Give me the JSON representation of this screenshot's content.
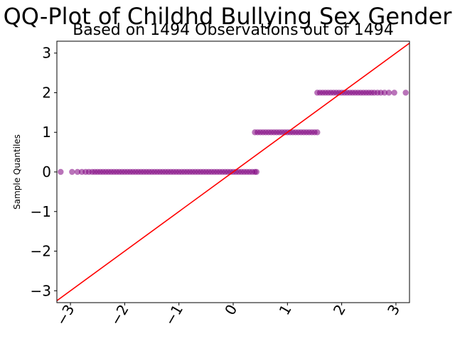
{
  "chart_data": {
    "type": "scatter",
    "title": "QQ-Plot of Childhd Bullying Sex Gender",
    "subtitle": "Based on 1494 Observations out of 1494",
    "xlabel": "",
    "ylabel": "Sample Quantiles",
    "xlim": [
      -3.25,
      3.25
    ],
    "ylim": [
      -3.3,
      3.3
    ],
    "x_ticks": [
      -3,
      -2,
      -1,
      0,
      1,
      2,
      3
    ],
    "x_tick_labels": [
      "−3",
      "−2",
      "−1",
      "0",
      "1",
      "2",
      "3"
    ],
    "y_ticks": [
      -3,
      -2,
      -1,
      0,
      1,
      2,
      3
    ],
    "y_tick_labels": [
      "−3",
      "−2",
      "−1",
      "0",
      "1",
      "2",
      "3"
    ],
    "grid": false,
    "colors": {
      "points": "#800080",
      "reference_line": "#ff0000"
    },
    "reference_line": {
      "x": [
        -3.3,
        3.3
      ],
      "y": [
        -3.3,
        3.3
      ]
    },
    "series": [
      {
        "values_level": 0,
        "x": [
          -3.18,
          -2.97,
          -2.87,
          -2.79,
          -2.72,
          -2.66,
          -2.6,
          -2.55,
          -2.5,
          -2.45,
          -2.4,
          -2.35,
          -2.3,
          -2.25,
          -2.2,
          -2.15,
          -2.1,
          -2.05,
          -2.0,
          -1.95,
          -1.9,
          -1.85,
          -1.8,
          -1.75,
          -1.7,
          -1.65,
          -1.6,
          -1.55,
          -1.5,
          -1.45,
          -1.4,
          -1.35,
          -1.3,
          -1.25,
          -1.2,
          -1.15,
          -1.1,
          -1.05,
          -1.0,
          -0.95,
          -0.9,
          -0.85,
          -0.8,
          -0.75,
          -0.7,
          -0.65,
          -0.6,
          -0.55,
          -0.5,
          -0.45,
          -0.4,
          -0.35,
          -0.3,
          -0.25,
          -0.2,
          -0.15,
          -0.1,
          -0.05,
          0.0,
          0.05,
          0.1,
          0.15,
          0.2,
          0.25,
          0.3,
          0.35,
          0.4,
          0.43
        ]
      },
      {
        "values_level": 1,
        "x": [
          0.4,
          0.45,
          0.5,
          0.55,
          0.6,
          0.65,
          0.7,
          0.75,
          0.8,
          0.85,
          0.9,
          0.95,
          1.0,
          1.05,
          1.1,
          1.15,
          1.2,
          1.25,
          1.3,
          1.35,
          1.4,
          1.45,
          1.5,
          1.55
        ]
      },
      {
        "values_level": 2,
        "x": [
          1.55,
          1.6,
          1.65,
          1.7,
          1.75,
          1.8,
          1.85,
          1.9,
          1.95,
          2.0,
          2.05,
          2.1,
          2.15,
          2.2,
          2.25,
          2.3,
          2.35,
          2.4,
          2.45,
          2.5,
          2.55,
          2.6,
          2.66,
          2.72,
          2.79,
          2.87,
          2.97,
          3.18
        ]
      }
    ]
  }
}
